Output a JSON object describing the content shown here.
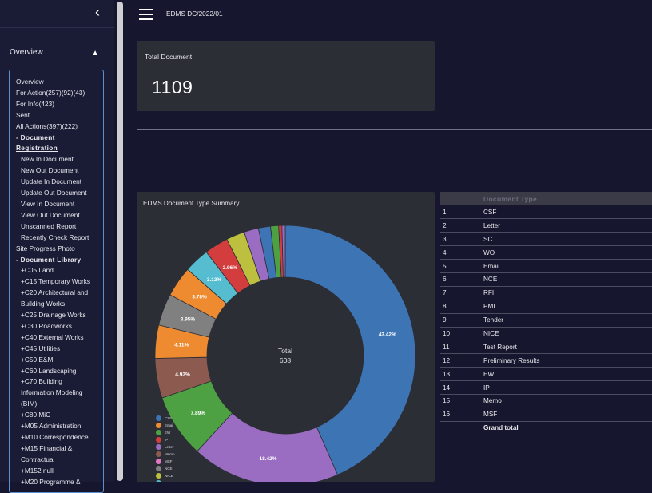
{
  "sidebar": {
    "collapse_icon": "chevron-left-icon",
    "overview_header": "Overview",
    "overview_arrow": "caret-up-icon",
    "items": [
      {
        "label": "Overview",
        "kind": "item"
      },
      {
        "label": "For Action(257)(92)(43)",
        "kind": "item"
      },
      {
        "label": "For Info(423)",
        "kind": "item"
      },
      {
        "label": "Sent",
        "kind": "item"
      },
      {
        "label": "All Actions(397)(222)",
        "kind": "item"
      },
      {
        "label": "- Document Registration",
        "kind": "section-underline"
      },
      {
        "label": "New In Document",
        "kind": "sub"
      },
      {
        "label": "New Out Document",
        "kind": "sub"
      },
      {
        "label": "Update In Document",
        "kind": "sub"
      },
      {
        "label": "Update Out Document",
        "kind": "sub"
      },
      {
        "label": "View In Document",
        "kind": "sub"
      },
      {
        "label": "View Out Document",
        "kind": "sub"
      },
      {
        "label": "Unscanned Report",
        "kind": "sub"
      },
      {
        "label": "Recently Check Report",
        "kind": "sub"
      },
      {
        "label": "Site Progress Photo",
        "kind": "item"
      },
      {
        "label": "- Document Library",
        "kind": "section"
      },
      {
        "label": "+C05 Land",
        "kind": "sub"
      },
      {
        "label": "+C15 Temporary Works",
        "kind": "sub"
      },
      {
        "label": "+C20 Architectural and",
        "kind": "sub"
      },
      {
        "label": "  Building Works",
        "kind": "sub"
      },
      {
        "label": "+C25 Drainage Works",
        "kind": "sub"
      },
      {
        "label": "+C30 Roadworks",
        "kind": "sub"
      },
      {
        "label": "+C40 External Works",
        "kind": "sub"
      },
      {
        "label": "+C45 Utilities",
        "kind": "sub"
      },
      {
        "label": "+C50 E&M",
        "kind": "sub"
      },
      {
        "label": "+C60 Landscaping",
        "kind": "sub"
      },
      {
        "label": "+C70 Building",
        "kind": "sub"
      },
      {
        "label": "  Information Modeling",
        "kind": "sub"
      },
      {
        "label": "  (BIM)",
        "kind": "sub"
      },
      {
        "label": "+C80 MiC",
        "kind": "sub"
      },
      {
        "label": "+M05 Administration",
        "kind": "sub"
      },
      {
        "label": "+M10 Correspondence",
        "kind": "sub"
      },
      {
        "label": "+M15 Financial &",
        "kind": "sub"
      },
      {
        "label": "  Contractual",
        "kind": "sub"
      },
      {
        "label": "+M152 null",
        "kind": "sub"
      },
      {
        "label": "+M20 Programme &",
        "kind": "sub"
      }
    ]
  },
  "topbar": {
    "menu_icon": "hamburger-menu-icon",
    "title": "EDMS DC/2022/01"
  },
  "total_card": {
    "label": "Total Document",
    "value": "1109"
  },
  "chart_data": {
    "type": "pie",
    "title": "EDMS Document Type Summary",
    "center_label": "Total",
    "center_value": "608",
    "slices": [
      {
        "name": "CSF",
        "percent": 43.42,
        "label": "43.42%",
        "color": "#3d74b4"
      },
      {
        "name": "Memo",
        "percent": 18.42,
        "label": "18.42%",
        "color": "#9a6cc2"
      },
      {
        "name": "EW",
        "percent": 7.89,
        "label": "7.89%",
        "color": "#4ea142"
      },
      {
        "name": "Letter",
        "percent": 4.93,
        "label": "4.93%",
        "color": "#8c5a4f"
      },
      {
        "name": "Email",
        "percent": 4.11,
        "label": "4.11%",
        "color": "#ee8a30"
      },
      {
        "name": "MSF",
        "percent": 3.95,
        "label": "3.95%",
        "color": "#808080"
      },
      {
        "name": "Email",
        "percent": 3.78,
        "label": "3.78%",
        "color": "#ee8a30"
      },
      {
        "name": "NICE",
        "percent": 3.13,
        "label": "3.13%",
        "color": "#56bccf"
      },
      {
        "name": "IP",
        "percent": 2.96,
        "label": "2.96%",
        "color": "#d43d3d"
      },
      {
        "name": "NCE",
        "percent": 2.3,
        "label": "",
        "color": "#bdbf3e"
      },
      {
        "name": "Letter",
        "percent": 1.8,
        "label": "",
        "color": "#9a6cc2"
      },
      {
        "name": "CSF",
        "percent": 1.5,
        "label": "",
        "color": "#3d74b4"
      },
      {
        "name": "EW",
        "percent": 1.0,
        "label": "",
        "color": "#4ea142"
      },
      {
        "name": "IP",
        "percent": 0.4,
        "label": "",
        "color": "#d43d3d"
      },
      {
        "name": "Memo",
        "percent": 0.41,
        "label": "",
        "color": "#9a6cc2"
      }
    ],
    "legend": [
      {
        "name": "CSF",
        "color": "#3d74b4"
      },
      {
        "name": "Email",
        "color": "#ee8a30"
      },
      {
        "name": "EW",
        "color": "#4ea142"
      },
      {
        "name": "IP",
        "color": "#d43d3d"
      },
      {
        "name": "Letter",
        "color": "#9a6cc2"
      },
      {
        "name": "Memo",
        "color": "#8c5a4f"
      },
      {
        "name": "MSF",
        "color": "#e377c2"
      },
      {
        "name": "NCE",
        "color": "#808080"
      },
      {
        "name": "NICE",
        "color": "#bdbf3e"
      },
      {
        "name": "PMI",
        "color": "#56bccf"
      }
    ]
  },
  "table": {
    "header": "Document Type",
    "rows": [
      {
        "num": "1",
        "type": "CSF"
      },
      {
        "num": "2",
        "type": "Letter"
      },
      {
        "num": "3",
        "type": "SC"
      },
      {
        "num": "4",
        "type": "WO"
      },
      {
        "num": "5",
        "type": "Email"
      },
      {
        "num": "6",
        "type": "NCE"
      },
      {
        "num": "7",
        "type": "RFI"
      },
      {
        "num": "8",
        "type": "PMI"
      },
      {
        "num": "9",
        "type": "Tender"
      },
      {
        "num": "10",
        "type": "NICE"
      },
      {
        "num": "11",
        "type": "Test Report"
      },
      {
        "num": "12",
        "type": "Preliminary Results"
      },
      {
        "num": "13",
        "type": "EW"
      },
      {
        "num": "14",
        "type": "IP"
      },
      {
        "num": "15",
        "type": "Memo"
      },
      {
        "num": "16",
        "type": "MSF"
      }
    ],
    "grand_total": "Grand total"
  }
}
